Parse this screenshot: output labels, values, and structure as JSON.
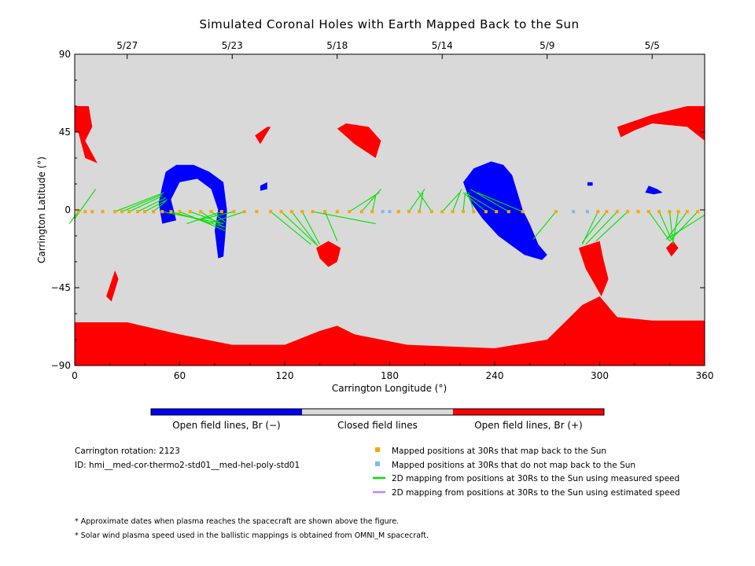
{
  "title": "Simulated Coronal Holes with Earth Mapped Back to the Sun",
  "colors": {
    "closed": "#d9d9d9",
    "open_negative": "#0000ff",
    "open_positive": "#ff0000",
    "mapped": "#f5a800",
    "unmapped": "#80b8f0",
    "measured_line": "#00e000",
    "estimated_line": "#c080ff"
  },
  "chart_data": {
    "type": "map",
    "xlabel": "Carrington Longitude (°)",
    "ylabel": "Carrington Latitude (°)",
    "xlim": [
      0,
      360
    ],
    "ylim": [
      -90,
      90
    ],
    "x_ticks": [
      "0",
      "60",
      "120",
      "180",
      "240",
      "300",
      "360"
    ],
    "y_ticks": [
      "90",
      "45",
      "0",
      "−45",
      "−90"
    ],
    "top_date_ticks": [
      {
        "label": "5/27",
        "lon": 30
      },
      {
        "label": "5/23",
        "lon": 90
      },
      {
        "label": "5/18",
        "lon": 150
      },
      {
        "label": "5/14",
        "lon": 210
      },
      {
        "label": "5/9",
        "lon": 270
      },
      {
        "label": "5/5",
        "lon": 330
      }
    ],
    "regions": [
      {
        "polarity": "positive",
        "points": [
          [
            0,
            -65
          ],
          [
            30,
            -65
          ],
          [
            60,
            -72
          ],
          [
            90,
            -78
          ],
          [
            120,
            -78
          ],
          [
            140,
            -70
          ],
          [
            150,
            -67
          ],
          [
            160,
            -72
          ],
          [
            190,
            -78
          ],
          [
            240,
            -80
          ],
          [
            270,
            -75
          ],
          [
            290,
            -55
          ],
          [
            300,
            -50
          ],
          [
            310,
            -62
          ],
          [
            330,
            -64
          ],
          [
            360,
            -64
          ],
          [
            360,
            -90
          ],
          [
            0,
            -90
          ]
        ]
      },
      {
        "polarity": "positive",
        "points": [
          [
            0,
            60
          ],
          [
            8,
            60
          ],
          [
            10,
            48
          ],
          [
            6,
            40
          ],
          [
            13,
            27
          ],
          [
            6,
            30
          ],
          [
            2,
            45
          ],
          [
            0,
            45
          ]
        ]
      },
      {
        "polarity": "positive",
        "points": [
          [
            310,
            48
          ],
          [
            330,
            55
          ],
          [
            350,
            60
          ],
          [
            360,
            60
          ],
          [
            360,
            40
          ],
          [
            350,
            48
          ],
          [
            330,
            50
          ],
          [
            320,
            46
          ],
          [
            312,
            42
          ]
        ]
      },
      {
        "polarity": "positive",
        "points": [
          [
            138,
            -22
          ],
          [
            145,
            -18
          ],
          [
            152,
            -22
          ],
          [
            150,
            -30
          ],
          [
            145,
            -33
          ],
          [
            140,
            -28
          ]
        ]
      },
      {
        "polarity": "positive",
        "points": [
          [
            288,
            -22
          ],
          [
            300,
            -18
          ],
          [
            302,
            -28
          ],
          [
            305,
            -40
          ],
          [
            301,
            -50
          ],
          [
            292,
            -34
          ]
        ]
      },
      {
        "polarity": "positive",
        "points": [
          [
            338,
            -22
          ],
          [
            342,
            -18
          ],
          [
            345,
            -22
          ],
          [
            341,
            -27
          ]
        ]
      },
      {
        "polarity": "positive",
        "points": [
          [
            103,
            43
          ],
          [
            110,
            48
          ],
          [
            112,
            48
          ],
          [
            106,
            38
          ]
        ]
      },
      {
        "polarity": "positive",
        "points": [
          [
            160,
            38
          ],
          [
            172,
            30
          ],
          [
            175,
            40
          ],
          [
            168,
            48
          ],
          [
            155,
            50
          ],
          [
            150,
            47
          ]
        ]
      },
      {
        "polarity": "positive",
        "points": [
          [
            23,
            -35
          ],
          [
            25,
            -40
          ],
          [
            21,
            -53
          ],
          [
            18,
            -50
          ]
        ]
      },
      {
        "polarity": "negative",
        "points": [
          [
            52,
            22
          ],
          [
            58,
            26
          ],
          [
            68,
            26
          ],
          [
            77,
            22
          ],
          [
            85,
            16
          ],
          [
            87,
            0
          ],
          [
            86,
            -15
          ],
          [
            85,
            -27
          ],
          [
            82,
            -28
          ],
          [
            80,
            -12
          ],
          [
            82,
            0
          ],
          [
            78,
            12
          ],
          [
            70,
            18
          ],
          [
            60,
            16
          ],
          [
            55,
            6
          ],
          [
            58,
            -6
          ],
          [
            50,
            -8
          ],
          [
            48,
            4
          ],
          [
            50,
            14
          ]
        ]
      },
      {
        "polarity": "negative",
        "points": [
          [
            222,
            16
          ],
          [
            228,
            24
          ],
          [
            238,
            28
          ],
          [
            245,
            26
          ],
          [
            250,
            20
          ],
          [
            256,
            0
          ],
          [
            260,
            -8
          ],
          [
            265,
            -20
          ],
          [
            270,
            -26
          ],
          [
            267,
            -29
          ],
          [
            257,
            -26
          ],
          [
            242,
            -15
          ],
          [
            233,
            -5
          ],
          [
            226,
            5
          ]
        ]
      },
      {
        "polarity": "negative",
        "points": [
          [
            328,
            14
          ],
          [
            333,
            12
          ],
          [
            336,
            10
          ],
          [
            331,
            9
          ],
          [
            326,
            10
          ]
        ]
      },
      {
        "polarity": "negative",
        "points": [
          [
            293,
            16
          ],
          [
            296,
            16
          ],
          [
            296,
            14
          ],
          [
            293,
            14
          ]
        ]
      },
      {
        "polarity": "negative",
        "points": [
          [
            106,
            14
          ],
          [
            110,
            16
          ],
          [
            110,
            12
          ],
          [
            106,
            11
          ]
        ]
      }
    ],
    "mapped_points": [
      {
        "lon": 2,
        "lat": -1,
        "maps": true
      },
      {
        "lon": 6,
        "lat": -1,
        "maps": true
      },
      {
        "lon": 10,
        "lat": -1,
        "maps": true
      },
      {
        "lon": 16,
        "lat": -1,
        "maps": true
      },
      {
        "lon": 23,
        "lat": -1,
        "maps": true
      },
      {
        "lon": 27,
        "lat": -1,
        "maps": true
      },
      {
        "lon": 31,
        "lat": -1,
        "maps": true
      },
      {
        "lon": 36,
        "lat": -1,
        "maps": true
      },
      {
        "lon": 40,
        "lat": -1,
        "maps": true
      },
      {
        "lon": 45,
        "lat": -1,
        "maps": true
      },
      {
        "lon": 50,
        "lat": -1,
        "maps": true
      },
      {
        "lon": 55,
        "lat": -1,
        "maps": true
      },
      {
        "lon": 60,
        "lat": -1,
        "maps": true
      },
      {
        "lon": 66,
        "lat": -1,
        "maps": true
      },
      {
        "lon": 72,
        "lat": -1,
        "maps": true
      },
      {
        "lon": 78,
        "lat": -1,
        "maps": true
      },
      {
        "lon": 84,
        "lat": -1,
        "maps": true
      },
      {
        "lon": 91,
        "lat": -1,
        "maps": true
      },
      {
        "lon": 97,
        "lat": -1,
        "maps": true
      },
      {
        "lon": 104,
        "lat": -1,
        "maps": true
      },
      {
        "lon": 112,
        "lat": -1,
        "maps": true
      },
      {
        "lon": 118,
        "lat": -1,
        "maps": true
      },
      {
        "lon": 124,
        "lat": -1,
        "maps": true
      },
      {
        "lon": 130,
        "lat": -1,
        "maps": true
      },
      {
        "lon": 136,
        "lat": -1,
        "maps": true
      },
      {
        "lon": 143,
        "lat": -1,
        "maps": true
      },
      {
        "lon": 150,
        "lat": -1,
        "maps": true
      },
      {
        "lon": 157,
        "lat": -1,
        "maps": true
      },
      {
        "lon": 164,
        "lat": -1,
        "maps": true
      },
      {
        "lon": 170,
        "lat": -1,
        "maps": true
      },
      {
        "lon": 176,
        "lat": -1,
        "maps": false
      },
      {
        "lon": 180,
        "lat": -1,
        "maps": false
      },
      {
        "lon": 185,
        "lat": -1,
        "maps": true
      },
      {
        "lon": 191,
        "lat": -1,
        "maps": true
      },
      {
        "lon": 197,
        "lat": -1,
        "maps": true
      },
      {
        "lon": 204,
        "lat": -1,
        "maps": true
      },
      {
        "lon": 210,
        "lat": -1,
        "maps": true
      },
      {
        "lon": 216,
        "lat": -1,
        "maps": true
      },
      {
        "lon": 222,
        "lat": -1,
        "maps": true
      },
      {
        "lon": 228,
        "lat": -1,
        "maps": true
      },
      {
        "lon": 235,
        "lat": -1,
        "maps": true
      },
      {
        "lon": 241,
        "lat": -1,
        "maps": true
      },
      {
        "lon": 248,
        "lat": -1,
        "maps": true
      },
      {
        "lon": 256,
        "lat": -1,
        "maps": true
      },
      {
        "lon": 275,
        "lat": -1,
        "maps": true
      },
      {
        "lon": 285,
        "lat": -1,
        "maps": false
      },
      {
        "lon": 293,
        "lat": -1,
        "maps": false
      },
      {
        "lon": 299,
        "lat": -1,
        "maps": true
      },
      {
        "lon": 304,
        "lat": -1,
        "maps": true
      },
      {
        "lon": 310,
        "lat": -1,
        "maps": true
      },
      {
        "lon": 316,
        "lat": -1,
        "maps": true
      },
      {
        "lon": 322,
        "lat": -1,
        "maps": true
      },
      {
        "lon": 328,
        "lat": -1,
        "maps": true
      },
      {
        "lon": 334,
        "lat": -1,
        "maps": true
      },
      {
        "lon": 340,
        "lat": -1,
        "maps": true
      },
      {
        "lon": 345,
        "lat": -1,
        "maps": true
      },
      {
        "lon": 350,
        "lat": -1,
        "maps": true
      },
      {
        "lon": 356,
        "lat": -1,
        "maps": true
      }
    ],
    "mapping_lines": [
      [
        [
          0,
          -5
        ],
        [
          12,
          12
        ]
      ],
      [
        [
          2,
          -1
        ],
        [
          -3,
          -8
        ]
      ],
      [
        [
          23,
          -1
        ],
        [
          51,
          10
        ]
      ],
      [
        [
          27,
          -1
        ],
        [
          50,
          9
        ]
      ],
      [
        [
          31,
          -1
        ],
        [
          50,
          8
        ]
      ],
      [
        [
          36,
          -1
        ],
        [
          52,
          7
        ]
      ],
      [
        [
          40,
          -1
        ],
        [
          53,
          6
        ]
      ],
      [
        [
          45,
          -1
        ],
        [
          52,
          5
        ]
      ],
      [
        [
          50,
          -1
        ],
        [
          85,
          -8
        ]
      ],
      [
        [
          55,
          -1
        ],
        [
          86,
          -10
        ]
      ],
      [
        [
          60,
          -1
        ],
        [
          86,
          -12
        ]
      ],
      [
        [
          66,
          -1
        ],
        [
          85,
          -8
        ]
      ],
      [
        [
          72,
          -1
        ],
        [
          85,
          -10
        ]
      ],
      [
        [
          78,
          -1
        ],
        [
          86,
          -7
        ]
      ],
      [
        [
          84,
          -1
        ],
        [
          64,
          -8
        ]
      ],
      [
        [
          91,
          -1
        ],
        [
          70,
          -6
        ]
      ],
      [
        [
          97,
          -1
        ],
        [
          76,
          -8
        ]
      ],
      [
        [
          112,
          -1
        ],
        [
          135,
          -20
        ]
      ],
      [
        [
          118,
          -1
        ],
        [
          138,
          -20
        ]
      ],
      [
        [
          124,
          -1
        ],
        [
          139,
          -21
        ]
      ],
      [
        [
          130,
          -1
        ],
        [
          140,
          -20
        ]
      ],
      [
        [
          136,
          -1
        ],
        [
          172,
          -8
        ]
      ],
      [
        [
          143,
          -1
        ],
        [
          150,
          -18
        ]
      ],
      [
        [
          157,
          -1
        ],
        [
          174,
          10
        ]
      ],
      [
        [
          164,
          -1
        ],
        [
          175,
          12
        ]
      ],
      [
        [
          170,
          -1
        ],
        [
          172,
          8
        ]
      ],
      [
        [
          191,
          -1
        ],
        [
          200,
          12
        ]
      ],
      [
        [
          197,
          -1
        ],
        [
          199,
          10
        ]
      ],
      [
        [
          204,
          -1
        ],
        [
          196,
          11
        ]
      ],
      [
        [
          210,
          -1
        ],
        [
          220,
          10
        ]
      ],
      [
        [
          216,
          -1
        ],
        [
          221,
          12
        ]
      ],
      [
        [
          222,
          -1
        ],
        [
          223,
          9
        ]
      ],
      [
        [
          228,
          -1
        ],
        [
          225,
          10
        ]
      ],
      [
        [
          235,
          -1
        ],
        [
          222,
          10
        ]
      ],
      [
        [
          241,
          -1
        ],
        [
          223,
          10
        ]
      ],
      [
        [
          248,
          -1
        ],
        [
          226,
          12
        ]
      ],
      [
        [
          256,
          -1
        ],
        [
          230,
          10
        ]
      ],
      [
        [
          275,
          -1
        ],
        [
          262,
          -17
        ]
      ],
      [
        [
          299,
          -1
        ],
        [
          290,
          -20
        ]
      ],
      [
        [
          304,
          -1
        ],
        [
          290,
          -19
        ]
      ],
      [
        [
          310,
          -1
        ],
        [
          292,
          -20
        ]
      ],
      [
        [
          316,
          -1
        ],
        [
          298,
          -18
        ]
      ],
      [
        [
          328,
          -1
        ],
        [
          340,
          -18
        ]
      ],
      [
        [
          334,
          -1
        ],
        [
          341,
          -17
        ]
      ],
      [
        [
          340,
          -1
        ],
        [
          342,
          -20
        ]
      ],
      [
        [
          345,
          -1
        ],
        [
          342,
          -18
        ]
      ],
      [
        [
          350,
          -1
        ],
        [
          339,
          -16
        ]
      ],
      [
        [
          356,
          -1
        ],
        [
          340,
          -18
        ]
      ],
      [
        [
          360,
          -3
        ],
        [
          338,
          -17
        ]
      ]
    ],
    "colorbar": [
      "Open field lines, Br (−)",
      "Closed field lines",
      "Open field lines, Br (+)"
    ]
  },
  "info": {
    "rotation": "Carrington rotation: 2123",
    "id": "ID: hmi__med-cor-thermo2-std01__med-hel-poly-std01"
  },
  "legend": [
    {
      "kind": "square",
      "color_key": "mapped",
      "label": "Mapped positions at 30Rs that map back to the Sun"
    },
    {
      "kind": "square",
      "color_key": "unmapped",
      "label": "Mapped positions at 30Rs that do not map back to the Sun"
    },
    {
      "kind": "line",
      "color_key": "measured_line",
      "label": "2D mapping from positions at 30Rs to the Sun using measured speed"
    },
    {
      "kind": "line",
      "color_key": "estimated_line",
      "label": "2D mapping from positions at 30Rs to the Sun using estimated speed"
    }
  ],
  "notes": [
    "* Approximate dates when plasma reaches the spacecraft are shown above the figure.",
    "* Solar wind plasma speed used in the ballistic mappings is obtained from OMNI_M spacecraft."
  ]
}
